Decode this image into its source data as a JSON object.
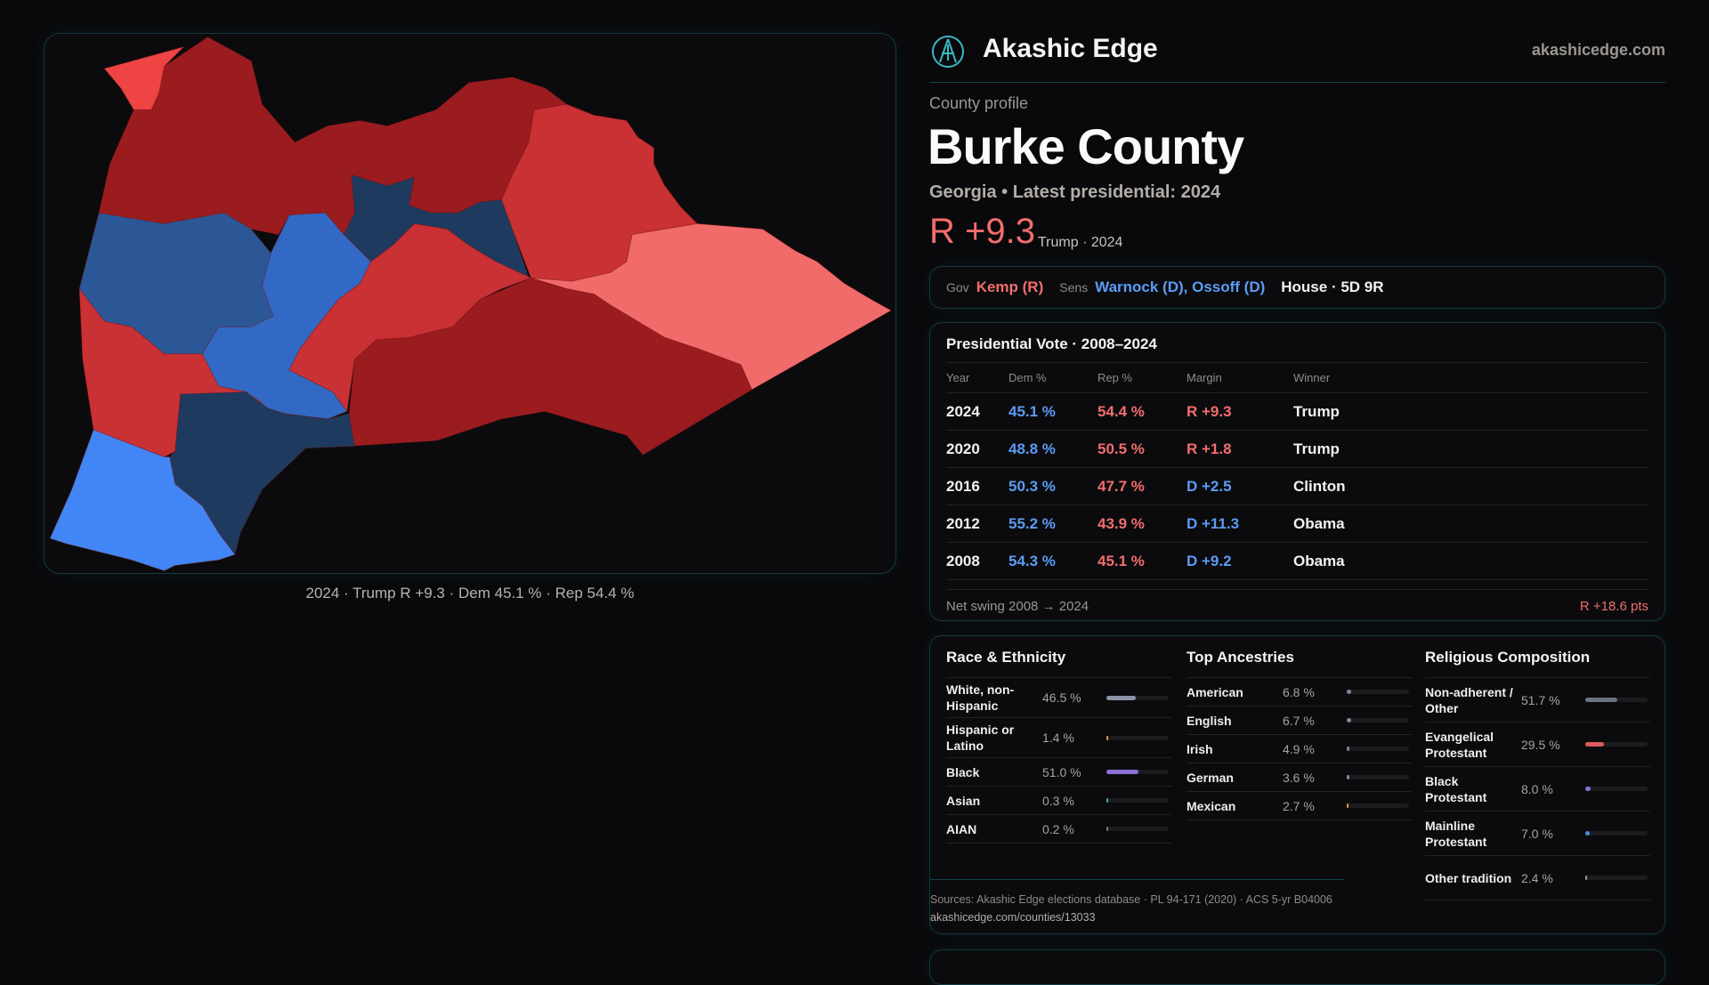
{
  "map": {
    "caption": "2024 · Trump R +9.3 · Dem 45.1 % · Rep 54.4 %",
    "colors": {
      "strong_r": "#9b1c1f",
      "lean_r": "#c93134",
      "tilt_r": "#f26b6b",
      "nw_r": "#ef4444",
      "strong_d": "#1e3a5f",
      "lean_d": "#2b5797",
      "mid_d": "#3169c4",
      "tilt_d": "#4285f4"
    }
  },
  "header": {
    "brand": "Akashic Edge",
    "site": "akashicedge.com",
    "logo_icon": "akashic-logo"
  },
  "profile": {
    "eyebrow": "County profile",
    "title": "Burke County",
    "subtitle": "Georgia • Latest presidential: 2024",
    "margin": "R +9.3",
    "margin_sub": "Trump · 2024"
  },
  "officials": {
    "gov_label": "Gov",
    "gov": "Kemp (R)",
    "sens_label": "Sens",
    "sens": "Warnock (D), Ossoff (D)",
    "house": "House · 5D 9R"
  },
  "presidential": {
    "title": "Presidential Vote · 2008–2024",
    "headers": [
      "Year",
      "Dem %",
      "Rep %",
      "Margin",
      "Winner"
    ],
    "rows": [
      {
        "year": "2024",
        "dem": "45.1 %",
        "rep": "54.4 %",
        "margin": "R +9.3",
        "party": "R",
        "winner": "Trump"
      },
      {
        "year": "2020",
        "dem": "48.8 %",
        "rep": "50.5 %",
        "margin": "R +1.8",
        "party": "R",
        "winner": "Trump"
      },
      {
        "year": "2016",
        "dem": "50.3 %",
        "rep": "47.7 %",
        "margin": "D +2.5",
        "party": "D",
        "winner": "Clinton"
      },
      {
        "year": "2012",
        "dem": "55.2 %",
        "rep": "43.9 %",
        "margin": "D +11.3",
        "party": "D",
        "winner": "Obama"
      },
      {
        "year": "2008",
        "dem": "54.3 %",
        "rep": "45.1 %",
        "margin": "D +9.2",
        "party": "D",
        "winner": "Obama"
      }
    ],
    "swing_label": "Net swing 2008 → 2024",
    "swing_value": "R +18.6 pts"
  },
  "demographics": {
    "race": {
      "title": "Race & Ethnicity",
      "items": [
        {
          "name": "White, non-Hispanic",
          "value": "46.5 %",
          "pct": 46.5,
          "color": "#8b93a7"
        },
        {
          "name": "Hispanic or Latino",
          "value": "1.4 %",
          "pct": 1.4,
          "color": "#e0a030"
        },
        {
          "name": "Black",
          "value": "51.0 %",
          "pct": 51.0,
          "color": "#8b6fd6"
        },
        {
          "name": "Asian",
          "value": "0.3 %",
          "pct": 0.3,
          "color": "#4aa3a0"
        },
        {
          "name": "AIAN",
          "value": "0.2 %",
          "pct": 0.2,
          "color": "#7a7a7a"
        }
      ]
    },
    "ancestry": {
      "title": "Top Ancestries",
      "items": [
        {
          "name": "American",
          "value": "6.8 %",
          "pct": 6.8,
          "color": "#7c86a0"
        },
        {
          "name": "English",
          "value": "6.7 %",
          "pct": 6.7,
          "color": "#7c86a0"
        },
        {
          "name": "Irish",
          "value": "4.9 %",
          "pct": 4.9,
          "color": "#7c86a0"
        },
        {
          "name": "German",
          "value": "3.6 %",
          "pct": 3.6,
          "color": "#7c86a0"
        },
        {
          "name": "Mexican",
          "value": "2.7 %",
          "pct": 2.7,
          "color": "#e0a030"
        }
      ]
    },
    "religion": {
      "title": "Religious Composition",
      "items": [
        {
          "name": "Non-adherent / Other",
          "value": "51.7 %",
          "pct": 51.7,
          "color": "#6b7280"
        },
        {
          "name": "Evangelical Protestant",
          "value": "29.5 %",
          "pct": 29.5,
          "color": "#e05a5a"
        },
        {
          "name": "Black Protestant",
          "value": "8.0 %",
          "pct": 8.0,
          "color": "#8b6fd6"
        },
        {
          "name": "Mainline Protestant",
          "value": "7.0 %",
          "pct": 7.0,
          "color": "#4a8ae8"
        },
        {
          "name": "Other tradition",
          "value": "2.4 %",
          "pct": 2.4,
          "color": "#9a9a9a"
        }
      ]
    },
    "sources": "Sources: Akashic Edge elections database · PL 94-171 (2020) · ACS 5-yr B04006",
    "url": "akashicedge.com/counties/13033"
  }
}
